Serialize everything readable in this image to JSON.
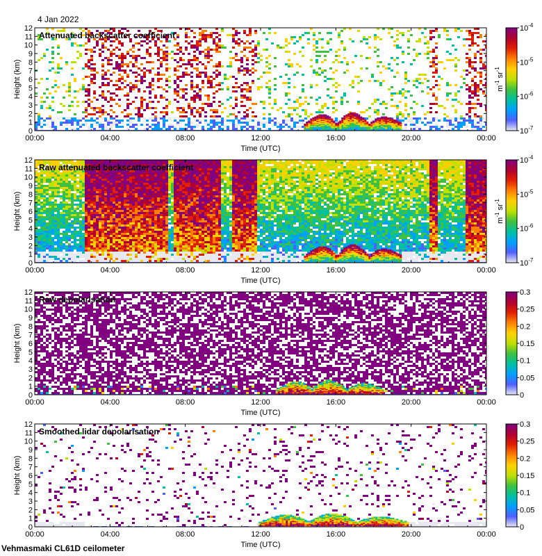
{
  "date_label": "4 Jan 2022",
  "footer_label": "Vehmasmaki CL61D ceilometer",
  "chart_data": [
    {
      "type": "heatmap",
      "title": "Attenuated backscatter coefficient",
      "xlabel": "Time (UTC)",
      "ylabel": "Height (km)",
      "x_ticks": [
        "00:00",
        "04:00",
        "08:00",
        "12:00",
        "16:00",
        "20:00",
        "00:00"
      ],
      "y_ticks": [
        "0",
        "1",
        "2",
        "3",
        "4",
        "5",
        "6",
        "7",
        "8",
        "9",
        "10",
        "11",
        "12"
      ],
      "ylim": [
        0,
        12
      ],
      "xlim_hours": [
        0,
        24
      ],
      "colorbar": {
        "scale": "log",
        "ticks": [
          {
            "base": "10",
            "exp": "-7"
          },
          {
            "base": "10",
            "exp": "-6"
          },
          {
            "base": "10",
            "exp": "-5"
          },
          {
            "base": "10",
            "exp": "-4"
          }
        ],
        "units": {
          "a": "m",
          "a_exp": "-1",
          "b": "sr",
          "b_exp": "-1"
        },
        "colors": [
          "#e8e8f0",
          "#5060ff",
          "#00a0ff",
          "#00c0a0",
          "#40c040",
          "#c0e000",
          "#ffd000",
          "#ff8000",
          "#e02000",
          "#b00030",
          "#800080"
        ]
      },
      "features": {
        "cloud_start_h": 14.3,
        "cloud_end_h": 19.5,
        "cloud_max_km": 2.2,
        "noisy_periods_h": [
          [
            2.6,
            7.0
          ],
          [
            7.3,
            9.8
          ],
          [
            10.4,
            11.8
          ],
          [
            20.9,
            21.4
          ],
          [
            22.8,
            24.0
          ]
        ]
      }
    },
    {
      "type": "heatmap",
      "title": "Raw attenuated backscatter coefficient",
      "xlabel": "Time (UTC)",
      "ylabel": "Height (km)",
      "x_ticks": [
        "00:00",
        "04:00",
        "08:00",
        "12:00",
        "16:00",
        "20:00",
        "00:00"
      ],
      "y_ticks": [
        "0",
        "1",
        "2",
        "3",
        "4",
        "5",
        "6",
        "7",
        "8",
        "9",
        "10",
        "11",
        "12"
      ],
      "ylim": [
        0,
        12
      ],
      "xlim_hours": [
        0,
        24
      ],
      "colorbar": {
        "scale": "log",
        "ticks": [
          {
            "base": "10",
            "exp": "-7"
          },
          {
            "base": "10",
            "exp": "-6"
          },
          {
            "base": "10",
            "exp": "-5"
          },
          {
            "base": "10",
            "exp": "-4"
          }
        ],
        "units": {
          "a": "m",
          "a_exp": "-1",
          "b": "sr",
          "b_exp": "-1"
        },
        "colors": [
          "#e8e8f0",
          "#5060ff",
          "#00a0ff",
          "#00c0a0",
          "#40c040",
          "#c0e000",
          "#ffd000",
          "#ff8000",
          "#e02000",
          "#b00030",
          "#800080"
        ]
      },
      "features": {
        "high_noise_periods_h": [
          [
            2.6,
            7.0
          ],
          [
            7.3,
            9.8
          ],
          [
            10.4,
            11.8
          ],
          [
            20.9,
            21.4
          ],
          [
            22.8,
            24.0
          ]
        ],
        "cloud_start_h": 14.3,
        "cloud_end_h": 19.5,
        "cloud_max_km": 2.2
      }
    },
    {
      "type": "heatmap",
      "title": "Raw depolarisation",
      "xlabel": "Time (UTC)",
      "ylabel": "Height (km)",
      "x_ticks": [
        "00:00",
        "04:00",
        "08:00",
        "12:00",
        "16:00",
        "20:00",
        "00:00"
      ],
      "y_ticks": [
        "0",
        "1",
        "2",
        "3",
        "4",
        "5",
        "6",
        "7",
        "8",
        "9",
        "10",
        "11",
        "12"
      ],
      "ylim": [
        0,
        12
      ],
      "xlim_hours": [
        0,
        24
      ],
      "colorbar": {
        "scale": "linear",
        "ticks": [
          "0",
          "0.05",
          "0.1",
          "0.15",
          "0.2",
          "0.25",
          "0.3"
        ],
        "range": [
          0,
          0.3
        ],
        "colors": [
          "#e8e8f0",
          "#5060ff",
          "#00a0ff",
          "#00c0a0",
          "#40c040",
          "#c0e000",
          "#ffd000",
          "#ff8000",
          "#e02000",
          "#b00030",
          "#800080"
        ]
      },
      "features": {
        "cloud_start_h": 12.8,
        "cloud_end_h": 18.5,
        "cloud_max_km": 1.8
      }
    },
    {
      "type": "heatmap",
      "title": "Smoothed lidar depolarisation",
      "xlabel": "Time (UTC)",
      "ylabel": "Height (km)",
      "x_ticks": [
        "00:00",
        "04:00",
        "08:00",
        "12:00",
        "16:00",
        "20:00",
        "00:00"
      ],
      "y_ticks": [
        "0",
        "1",
        "2",
        "3",
        "4",
        "5",
        "6",
        "7",
        "8",
        "9",
        "10",
        "11",
        "12"
      ],
      "ylim": [
        0,
        12
      ],
      "xlim_hours": [
        0,
        24
      ],
      "colorbar": {
        "scale": "linear",
        "ticks": [
          "0",
          "0.05",
          "0.1",
          "0.15",
          "0.2",
          "0.25",
          "0.3"
        ],
        "range": [
          0,
          0.3
        ],
        "colors": [
          "#e8e8f0",
          "#5060ff",
          "#00a0ff",
          "#00c0a0",
          "#40c040",
          "#c0e000",
          "#ffd000",
          "#ff8000",
          "#e02000",
          "#b00030",
          "#800080"
        ]
      },
      "features": {
        "cloud_start_h": 11.9,
        "cloud_end_h": 19.8,
        "cloud_max_km": 1.6
      }
    }
  ]
}
